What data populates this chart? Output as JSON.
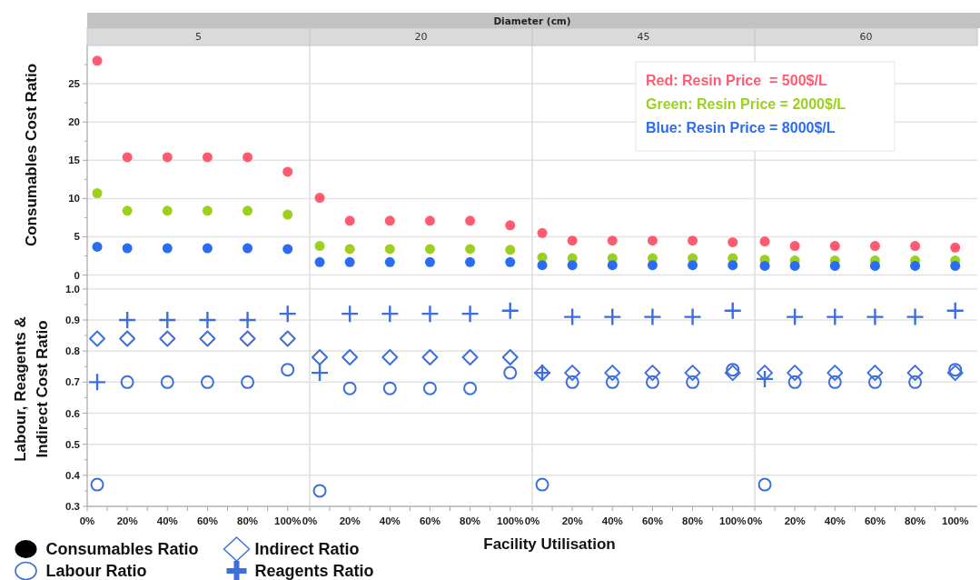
{
  "chart_data": [
    {
      "type": "scatter",
      "title": "5",
      "annotations": [
        "Diameter (cm)"
      ],
      "ylabel": "Consumables Cost Ratio",
      "x": [
        5,
        20,
        40,
        60,
        80,
        100
      ],
      "xlim": [
        0,
        111
      ],
      "ylim": [
        -1,
        30
      ],
      "yticks": [
        0,
        {
          "value": 2.5,
          "label": null
        },
        5,
        {
          "value": 7.5,
          "label": null
        },
        10,
        {
          "value": 12.5,
          "label": null
        },
        15,
        {
          "value": 17.5,
          "label": null
        },
        20,
        {
          "value": 22.5,
          "label": null
        },
        25,
        {
          "value": 27.5,
          "label": null
        }
      ],
      "grid": "y",
      "marker": "circle",
      "tick_labels": "y",
      "series": [
        {
          "color": "#fe5b70",
          "values": [
            28,
            15.4,
            15.4,
            15.4,
            15.4,
            13.5
          ]
        },
        {
          "color": "#9bd11c",
          "values": [
            10.7,
            8.4,
            8.4,
            8.4,
            8.4,
            7.9
          ]
        },
        {
          "color": "#2b6cf3",
          "values": [
            3.7,
            3.5,
            3.5,
            3.5,
            3.5,
            3.4
          ]
        }
      ]
    },
    {
      "type": "scatter",
      "title": "20",
      "x": [
        5,
        20,
        40,
        60,
        80,
        100
      ],
      "xlim": [
        0,
        111
      ],
      "ylim": [
        -1,
        30
      ],
      "yticks": [
        0,
        5,
        10,
        15,
        20,
        25
      ],
      "grid": "y",
      "marker": "circle",
      "tick_labels": false,
      "series": [
        {
          "color": "#fe5b70",
          "values": [
            10.1,
            7.1,
            7.1,
            7.1,
            7.1,
            6.5
          ]
        },
        {
          "color": "#9bd11c",
          "values": [
            3.8,
            3.4,
            3.4,
            3.4,
            3.4,
            3.3
          ]
        },
        {
          "color": "#2b6cf3",
          "values": [
            1.7,
            1.7,
            1.7,
            1.7,
            1.7,
            1.7
          ]
        }
      ]
    },
    {
      "type": "scatter",
      "title": "45",
      "x": [
        5,
        20,
        40,
        60,
        80,
        100
      ],
      "xlim": [
        0,
        111
      ],
      "ylim": [
        -1,
        30
      ],
      "yticks": [
        0,
        5,
        10,
        15,
        20,
        25
      ],
      "grid": "y",
      "marker": "circle",
      "tick_labels": false,
      "legend": "top right",
      "series": [
        {
          "name": "Red: Resin Price  = 500$/L",
          "color": "#fe5b70",
          "values": [
            5.5,
            4.5,
            4.5,
            4.5,
            4.5,
            4.3
          ]
        },
        {
          "name": "Green: Resin Price = 2000$/L",
          "color": "#9bd11c",
          "values": [
            2.3,
            2.2,
            2.2,
            2.2,
            2.2,
            2.2
          ]
        },
        {
          "name": "Blue: Resin Price = 8000$/L",
          "color": "#2b6cf3",
          "values": [
            1.3,
            1.3,
            1.3,
            1.3,
            1.3,
            1.3
          ]
        }
      ]
    },
    {
      "type": "scatter",
      "title": "60",
      "x": [
        5,
        20,
        40,
        60,
        80,
        100
      ],
      "xlim": [
        0,
        111
      ],
      "ylim": [
        -1,
        30
      ],
      "yticks": [
        0,
        5,
        10,
        15,
        20,
        25
      ],
      "grid": "y",
      "marker": "circle",
      "tick_labels": false,
      "series": [
        {
          "color": "#fe5b70",
          "values": [
            4.4,
            3.8,
            3.8,
            3.8,
            3.8,
            3.6
          ]
        },
        {
          "color": "#9bd11c",
          "values": [
            2.0,
            1.9,
            1.9,
            1.9,
            1.9,
            1.9
          ]
        },
        {
          "color": "#2b6cf3",
          "values": [
            1.2,
            1.2,
            1.2,
            1.2,
            1.2,
            1.2
          ]
        }
      ]
    },
    {
      "type": "scatter",
      "ylabel": "Labour, Reagents & Indirect Cost Ratio",
      "annotations": [
        "Consumables Ratio"
      ],
      "legend": "bottom",
      "x": [
        5,
        20,
        40,
        60,
        80,
        100
      ],
      "xlim": [
        0,
        111
      ],
      "xticks": [
        {
          "value": 0,
          "label": "0%"
        },
        {
          "value": 10,
          "label": null
        },
        {
          "value": 20,
          "label": "20%"
        },
        {
          "value": 30,
          "label": null
        },
        {
          "value": 40,
          "label": "40%"
        },
        {
          "value": 50,
          "label": null
        },
        {
          "value": 60,
          "label": "60%"
        },
        {
          "value": 70,
          "label": null
        },
        {
          "value": 80,
          "label": "80%"
        },
        {
          "value": 90,
          "label": null
        },
        {
          "value": 100,
          "label": "100%"
        }
      ],
      "ylim": [
        0.3,
        1.02
      ],
      "yticks": [
        0.3,
        {
          "value": 0.35,
          "label": null
        },
        0.4,
        {
          "value": 0.45,
          "label": null
        },
        0.5,
        {
          "value": 0.55,
          "label": null
        },
        0.6,
        {
          "value": 0.65,
          "label": null
        },
        0.7,
        {
          "value": 0.75,
          "label": null
        },
        0.8,
        {
          "value": 0.85,
          "label": null
        },
        0.9,
        {
          "value": 0.95,
          "label": null
        },
        {
          "value": 1,
          "label": "1.0"
        }
      ],
      "grid": "y",
      "series": [
        {
          "name": "Labour Ratio",
          "marker": "circle",
          "color": "#3c6fdc",
          "values": [
            0.37,
            0.7,
            0.7,
            0.7,
            0.7,
            0.74
          ]
        },
        {
          "name": "Indirect Ratio",
          "marker": "diamond",
          "color": "#3c6fdc",
          "values": [
            0.84,
            0.84,
            0.84,
            0.84,
            0.84,
            0.84
          ]
        },
        {
          "name": "Reagents Ratio",
          "marker": "cross",
          "color": "#3c6fdc",
          "values": [
            0.7,
            0.9,
            0.9,
            0.9,
            0.9,
            0.92
          ]
        }
      ]
    },
    {
      "type": "scatter",
      "x": [
        5,
        20,
        40,
        60,
        80,
        100
      ],
      "xlim": [
        0,
        111
      ],
      "xticks": [
        {
          "value": 0,
          "label": "0%"
        },
        {
          "value": 10,
          "label": null
        },
        {
          "value": 20,
          "label": "20%"
        },
        {
          "value": 30,
          "label": null
        },
        {
          "value": 40,
          "label": "40%"
        },
        {
          "value": 50,
          "label": null
        },
        {
          "value": 60,
          "label": "60%"
        },
        {
          "value": 70,
          "label": null
        },
        {
          "value": 80,
          "label": "80%"
        },
        {
          "value": 90,
          "label": null
        },
        {
          "value": 100,
          "label": "100%"
        }
      ],
      "ylim": [
        0.3,
        1.02
      ],
      "yticks": [
        0.3,
        0.4,
        0.5,
        0.6,
        0.7,
        0.8,
        0.9,
        1
      ],
      "grid": "y",
      "tick_labels": "x",
      "series": [
        {
          "marker": "circle",
          "color": "#3c6fdc",
          "values": [
            0.35,
            0.68,
            0.68,
            0.68,
            0.68,
            0.73
          ]
        },
        {
          "marker": "diamond",
          "color": "#3c6fdc",
          "values": [
            0.78,
            0.78,
            0.78,
            0.78,
            0.78,
            0.78
          ]
        },
        {
          "marker": "cross",
          "color": "#3c6fdc",
          "values": [
            0.73,
            0.92,
            0.92,
            0.92,
            0.92,
            0.93
          ]
        }
      ]
    },
    {
      "type": "scatter",
      "xlabel": "Facility Utilisation",
      "x": [
        5,
        20,
        40,
        60,
        80,
        100
      ],
      "xlim": [
        0,
        111
      ],
      "xticks": [
        {
          "value": 0,
          "label": "0%"
        },
        {
          "value": 10,
          "label": null
        },
        {
          "value": 20,
          "label": "20%"
        },
        {
          "value": 30,
          "label": null
        },
        {
          "value": 40,
          "label": "40%"
        },
        {
          "value": 50,
          "label": null
        },
        {
          "value": 60,
          "label": "60%"
        },
        {
          "value": 70,
          "label": null
        },
        {
          "value": 80,
          "label": "80%"
        },
        {
          "value": 90,
          "label": null
        },
        {
          "value": 100,
          "label": "100%"
        }
      ],
      "ylim": [
        0.3,
        1.02
      ],
      "yticks": [
        0.3,
        0.4,
        0.5,
        0.6,
        0.7,
        0.8,
        0.9,
        1
      ],
      "grid": "y",
      "tick_labels": "x",
      "series": [
        {
          "marker": "circle",
          "color": "#3c6fdc",
          "values": [
            0.37,
            0.7,
            0.7,
            0.7,
            0.7,
            0.74
          ]
        },
        {
          "marker": "diamond",
          "color": "#3c6fdc",
          "values": [
            0.73,
            0.73,
            0.73,
            0.73,
            0.73,
            0.73
          ]
        },
        {
          "marker": "cross",
          "color": "#3c6fdc",
          "values": [
            0.73,
            0.91,
            0.91,
            0.91,
            0.91,
            0.93
          ]
        }
      ]
    },
    {
      "type": "scatter",
      "x": [
        5,
        20,
        40,
        60,
        80,
        100
      ],
      "xlim": [
        0,
        111
      ],
      "xticks": [
        {
          "value": 0,
          "label": "0%"
        },
        {
          "value": 10,
          "label": null
        },
        {
          "value": 20,
          "label": "20%"
        },
        {
          "value": 30,
          "label": null
        },
        {
          "value": 40,
          "label": "40%"
        },
        {
          "value": 50,
          "label": null
        },
        {
          "value": 60,
          "label": "60%"
        },
        {
          "value": 70,
          "label": null
        },
        {
          "value": 80,
          "label": "80%"
        },
        {
          "value": 90,
          "label": null
        },
        {
          "value": 100,
          "label": "100%"
        }
      ],
      "ylim": [
        0.3,
        1.02
      ],
      "yticks": [
        0.3,
        0.4,
        0.5,
        0.6,
        0.7,
        0.8,
        0.9,
        1
      ],
      "grid": "y",
      "tick_labels": "x",
      "series": [
        {
          "marker": "circle",
          "color": "#3c6fdc",
          "values": [
            0.37,
            0.7,
            0.7,
            0.7,
            0.7,
            0.74
          ]
        },
        {
          "marker": "diamond",
          "color": "#3c6fdc",
          "values": [
            0.73,
            0.73,
            0.73,
            0.73,
            0.73,
            0.73
          ]
        },
        {
          "marker": "cross",
          "color": "#3c6fdc",
          "values": [
            0.71,
            0.91,
            0.91,
            0.91,
            0.91,
            0.93
          ]
        }
      ]
    }
  ]
}
